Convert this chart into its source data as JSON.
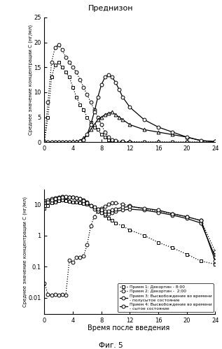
{
  "title": "Преднизон",
  "xlabel": "Время после введения",
  "fig_label": "Фиг. 5",
  "ylabel_top": "Среднее значение концентрации С (нг/мл)",
  "ylabel_bottom": "Среднее значение концентрации С (нг/мл)",
  "top": {
    "ylim": [
      0,
      25
    ],
    "yticks": [
      0,
      5,
      10,
      15,
      20,
      25
    ],
    "xticks": [
      0,
      4,
      8,
      12,
      16,
      20,
      24
    ],
    "series1_x": [
      0,
      0.5,
      1,
      1.5,
      2,
      2.5,
      3,
      3.5,
      4,
      4.5,
      5,
      5.5,
      6,
      6.5,
      7,
      7.5,
      8,
      8.5,
      9,
      9.5,
      10,
      11,
      12,
      14,
      16,
      18,
      20,
      22,
      24
    ],
    "series1_y": [
      0,
      5,
      13,
      15.5,
      16,
      15,
      14,
      13,
      11,
      9,
      7.5,
      6.5,
      5,
      4,
      3,
      2.5,
      1.5,
      1,
      0.5,
      0.3,
      0.2,
      0.1,
      0.05,
      0.02,
      0.01,
      0,
      0,
      0,
      0
    ],
    "series2_x": [
      0,
      0.5,
      1,
      1.5,
      2,
      2.5,
      3,
      3.5,
      4,
      4.5,
      5,
      5.5,
      6,
      6.5,
      7,
      7.5,
      8,
      8.5,
      9,
      9.5,
      10,
      11,
      12,
      14,
      16,
      18,
      20,
      22,
      24
    ],
    "series2_y": [
      0,
      8,
      16,
      19,
      19.5,
      18.5,
      17,
      16,
      15,
      14,
      12.5,
      11,
      9.5,
      8,
      6.5,
      5,
      3.5,
      2,
      1,
      0.5,
      0.3,
      0.1,
      0.05,
      0.02,
      0.01,
      0,
      0,
      0,
      0
    ],
    "series3_x": [
      0,
      0.5,
      1,
      1.5,
      2,
      2.5,
      3,
      3.5,
      4,
      4.5,
      5,
      5.5,
      6,
      6.5,
      7,
      7.5,
      8,
      8.5,
      9,
      9.5,
      10,
      10.5,
      11,
      12,
      14,
      16,
      18,
      20,
      22,
      24
    ],
    "series3_y": [
      0,
      0,
      0,
      0,
      0,
      0,
      0,
      0,
      0,
      0.1,
      0.3,
      0.8,
      1.5,
      2.5,
      3.5,
      4.5,
      5,
      5.5,
      5.8,
      6.0,
      5.5,
      5,
      4.5,
      3.5,
      2.5,
      2,
      1.5,
      1,
      0.3,
      0.1
    ],
    "series4_x": [
      0,
      0.5,
      1,
      1.5,
      2,
      2.5,
      3,
      3.5,
      4,
      4.5,
      5,
      5.5,
      6,
      6.5,
      7,
      7.5,
      8,
      8.5,
      9,
      9.5,
      10,
      10.5,
      11,
      12,
      14,
      16,
      18,
      20,
      22,
      24
    ],
    "series4_y": [
      0,
      0,
      0,
      0,
      0,
      0,
      0,
      0,
      0,
      0.05,
      0.2,
      0.5,
      1.5,
      3.5,
      6,
      9,
      11.5,
      13,
      13.5,
      13,
      12,
      10.5,
      9,
      7,
      4.5,
      3,
      2,
      1,
      0.3,
      0.1
    ]
  },
  "bottom": {
    "ylim_log": [
      0.003,
      30
    ],
    "yticks": [
      0.01,
      0.1,
      1,
      10
    ],
    "xticks": [
      0,
      4,
      8,
      12,
      16,
      20,
      24
    ],
    "series1_x": [
      0,
      0.5,
      1,
      1.5,
      2,
      2.5,
      3,
      3.5,
      4,
      4.5,
      5,
      5.5,
      6,
      6.5,
      7,
      7.5,
      8,
      8.5,
      9,
      9.5,
      10,
      11,
      12,
      14,
      16,
      18,
      20,
      22,
      24
    ],
    "series1_y": [
      7.5,
      9,
      11,
      12,
      13,
      13.5,
      13,
      12.5,
      12,
      11.5,
      11,
      10.5,
      10,
      9,
      8,
      7,
      5.5,
      4.5,
      3.5,
      3,
      2.5,
      2,
      1.5,
      1,
      0.6,
      0.4,
      0.25,
      0.15,
      0.12
    ],
    "series2_x": [
      0,
      0.5,
      1,
      1.5,
      2,
      2.5,
      3,
      3.5,
      4,
      4.5,
      5,
      5.5,
      6,
      6.5,
      7,
      7.5,
      8,
      8.5,
      9,
      9.5,
      10,
      11,
      12,
      14,
      16,
      18,
      20,
      22,
      24
    ],
    "series2_y": [
      0.03,
      0.013,
      0.012,
      0.013,
      0.012,
      0.013,
      0.012,
      0.16,
      0.14,
      0.2,
      0.2,
      0.22,
      0.5,
      2,
      4,
      6,
      7.5,
      8.5,
      10,
      11,
      11,
      10,
      9,
      7,
      6,
      5,
      4,
      3,
      0.3
    ],
    "series3_x": [
      0,
      0.5,
      1,
      1.5,
      2,
      2.5,
      3,
      3.5,
      4,
      4.5,
      5,
      5.5,
      6,
      6.5,
      7,
      7.5,
      8,
      8.5,
      9,
      9.5,
      10,
      11,
      12,
      14,
      16,
      18,
      20,
      22,
      24
    ],
    "series3_y": [
      13,
      14,
      15,
      16,
      17,
      17.5,
      17,
      17,
      16.5,
      16,
      15,
      14,
      12,
      9,
      7,
      6,
      5.5,
      5,
      5,
      5.5,
      6,
      6.5,
      7,
      6.5,
      5.5,
      4.5,
      3.5,
      2.5,
      0.2
    ],
    "series4_x": [
      0,
      0.5,
      1,
      1.5,
      2,
      2.5,
      3,
      3.5,
      4,
      4.5,
      5,
      5.5,
      6,
      6.5,
      7,
      7.5,
      8,
      8.5,
      9,
      9.5,
      10,
      11,
      12,
      14,
      16,
      18,
      20,
      22,
      24
    ],
    "series4_y": [
      11,
      12,
      14,
      15,
      16,
      17,
      17.5,
      17,
      16.5,
      16,
      15,
      13,
      11,
      9,
      8,
      7,
      6.5,
      6,
      6,
      6.5,
      7,
      8,
      8.5,
      7.5,
      6.5,
      5,
      4,
      3,
      0.15
    ]
  },
  "legend": {
    "label1": "Прием 1: Декортин - 8:00",
    "label2": "Прием 2: Декортин -  2:00",
    "label3": "Прием 3: Высвобождение во времени\n- полусытое состояние",
    "label4": "Прием 4: Высвобождение во времени\n- сытое состояние"
  }
}
